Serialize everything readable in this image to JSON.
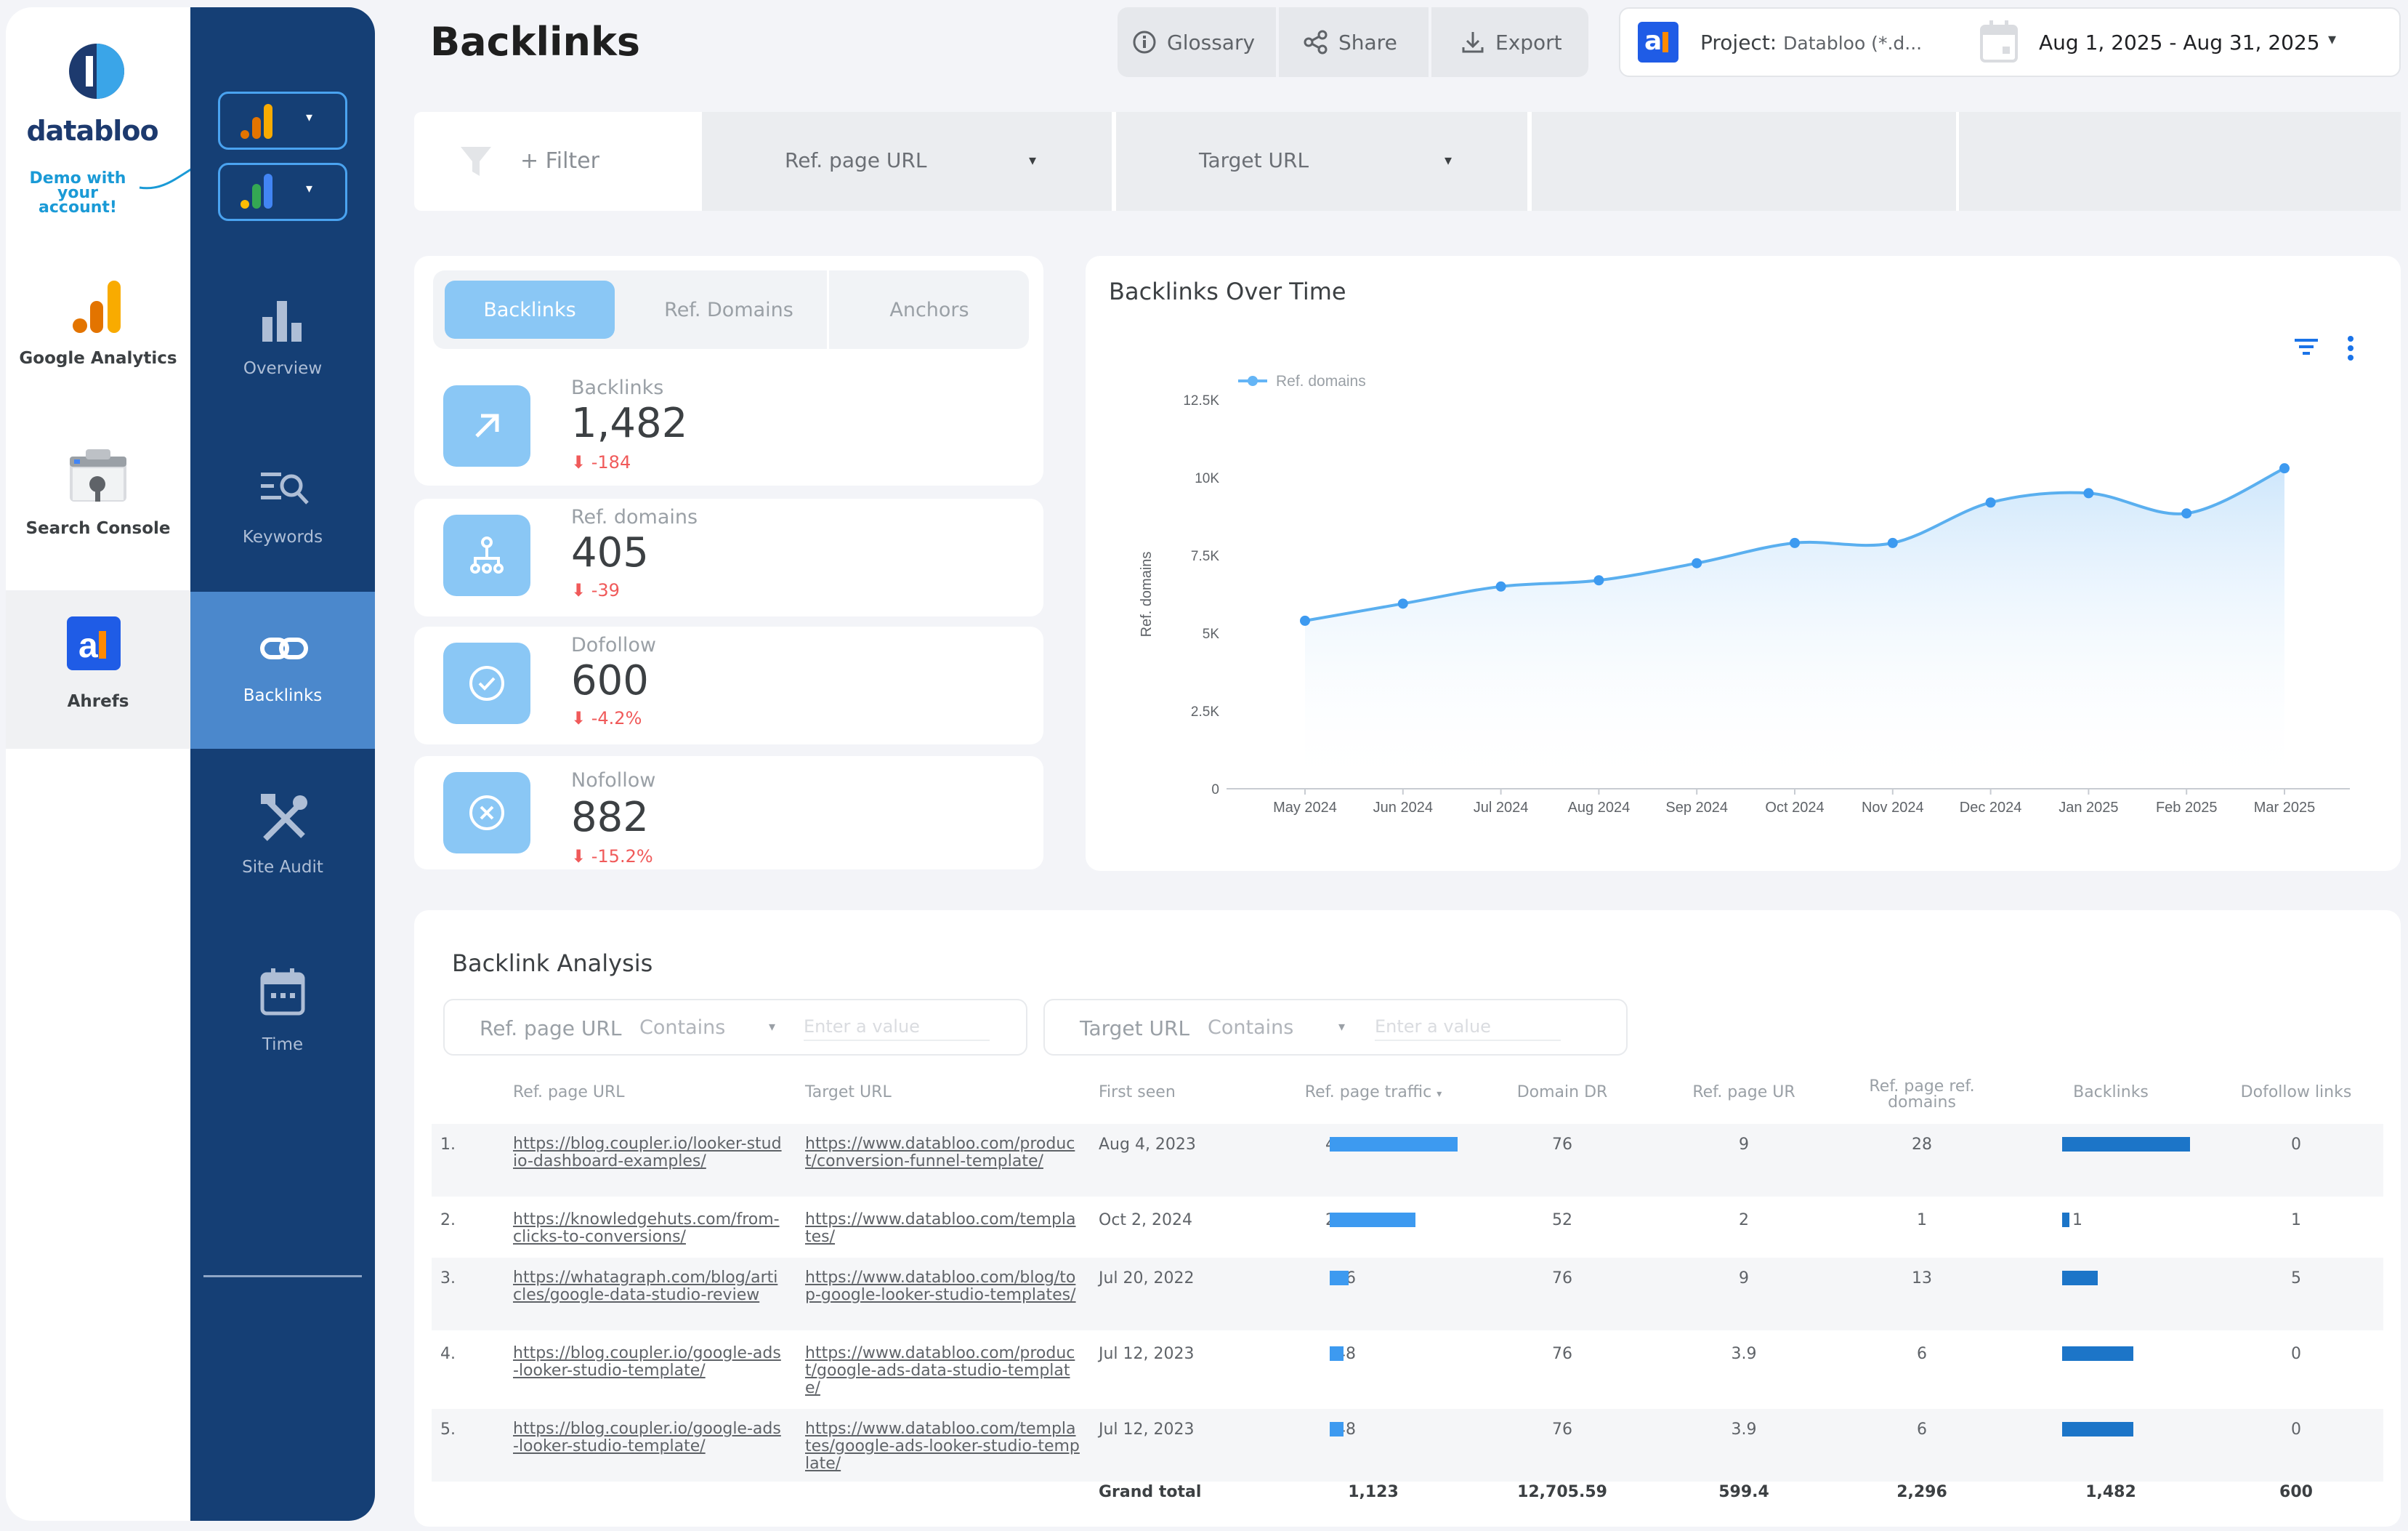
{
  "brand": {
    "name": "databloo",
    "demo_line1": "Demo with",
    "demo_line2": "your account!"
  },
  "sources": [
    {
      "label": "Google Analytics",
      "icon": "google-analytics-icon"
    },
    {
      "label": "Search Console",
      "icon": "search-console-icon"
    },
    {
      "label": "Ahrefs",
      "icon": "ahrefs-icon"
    }
  ],
  "nav": [
    {
      "label": "Overview",
      "icon": "bar-chart-icon"
    },
    {
      "label": "Keywords",
      "icon": "keyword-search-icon"
    },
    {
      "label": "Backlinks",
      "icon": "link-icon"
    },
    {
      "label": "Site Audit",
      "icon": "tools-icon"
    },
    {
      "label": "Time",
      "icon": "calendar-icon"
    }
  ],
  "header": {
    "title": "Backlinks",
    "glossary": "Glossary",
    "share": "Share",
    "export": "Export",
    "project_label": "Project:",
    "project_value": "Databloo (*.d...",
    "date_range": "Aug 1, 2025 - Aug 31, 2025"
  },
  "filters": {
    "add": "+ Filter",
    "ref_page": "Ref. page URL",
    "target": "Target URL"
  },
  "tabs": [
    "Backlinks",
    "Ref. Domains",
    "Anchors"
  ],
  "kpis": [
    {
      "label": "Backlinks",
      "value": "1,482",
      "delta": "-184"
    },
    {
      "label": "Ref. domains",
      "value": "405",
      "delta": "-39"
    },
    {
      "label": "Dofollow",
      "value": "600",
      "delta": "-4.2%"
    },
    {
      "label": "Nofollow",
      "value": "882",
      "delta": "-15.2%"
    }
  ],
  "chart_data": {
    "type": "line",
    "title": "Backlinks Over Time",
    "legend": "Ref. domains",
    "ylabel": "Ref. domains",
    "categories": [
      "May 2024",
      "Jun 2024",
      "Jul 2024",
      "Aug 2024",
      "Sep 2024",
      "Oct 2024",
      "Nov 2024",
      "Dec 2024",
      "Jan 2025",
      "Feb 2025",
      "Mar 2025"
    ],
    "values": [
      5400,
      5950,
      6500,
      6700,
      7250,
      7900,
      7900,
      9200,
      9500,
      8850,
      10300
    ],
    "ylim": [
      0,
      12500
    ],
    "yticks": [
      0,
      2500,
      5000,
      7500,
      10000,
      12500
    ],
    "ytick_labels": [
      "0",
      "2.5K",
      "5K",
      "7.5K",
      "10K",
      "12.5K"
    ]
  },
  "table": {
    "title": "Backlink Analysis",
    "filter1": {
      "label": "Ref. page URL",
      "op": "Contains",
      "placeholder": "Enter a value"
    },
    "filter2": {
      "label": "Target URL",
      "op": "Contains",
      "placeholder": "Enter a value"
    },
    "headers": [
      "Ref. page URL",
      "Target URL",
      "First seen",
      "Ref. page traffic",
      "Domain DR",
      "Ref. page UR",
      "Ref. page ref. domains",
      "Backlinks",
      "Dofollow links"
    ],
    "rows": [
      {
        "n": "1.",
        "ref": "https://blog.coupler.io/looker-studio-dashboard-examples/",
        "target": "https://www.databloo.com/product/conversion-funnel-template/",
        "first": "Aug 4, 2023",
        "traffic": 443,
        "dr": "76",
        "ur": "9",
        "rd": "28",
        "backlinks": 18,
        "dofollow": "0"
      },
      {
        "n": "2.",
        "ref": "https://knowledgehuts.com/from-clicks-to-conversions/",
        "target": "https://www.databloo.com/templates/",
        "first": "Oct 2, 2024",
        "traffic": 297,
        "dr": "52",
        "ur": "2",
        "rd": "1",
        "backlinks": 1,
        "dofollow": "1"
      },
      {
        "n": "3.",
        "ref": "https://whatagraph.com/blog/articles/google-data-studio-review",
        "target": "https://www.databloo.com/blog/top-google-looker-studio-templates/",
        "first": "Jul 20, 2022",
        "traffic": 66,
        "dr": "76",
        "ur": "9",
        "rd": "13",
        "backlinks": 5,
        "dofollow": "5"
      },
      {
        "n": "4.",
        "ref": "https://blog.coupler.io/google-ads-looker-studio-template/",
        "target": "https://www.databloo.com/product/google-ads-data-studio-template/",
        "first": "Jul 12, 2023",
        "traffic": 48,
        "dr": "76",
        "ur": "3.9",
        "rd": "6",
        "backlinks": 10,
        "dofollow": "0"
      },
      {
        "n": "5.",
        "ref": "https://blog.coupler.io/google-ads-looker-studio-template/",
        "target": "https://www.databloo.com/templates/google-ads-looker-studio-template/",
        "first": "Jul 12, 2023",
        "traffic": 48,
        "dr": "76",
        "ur": "3.9",
        "rd": "6",
        "backlinks": 10,
        "dofollow": "0"
      }
    ],
    "totals": {
      "label": "Grand total",
      "traffic": "1,123",
      "dr": "12,705.59",
      "ur": "599.4",
      "rd": "2,296",
      "backlinks": "1,482",
      "dofollow": "600"
    },
    "max_traffic": 443,
    "max_backlinks": 18
  }
}
